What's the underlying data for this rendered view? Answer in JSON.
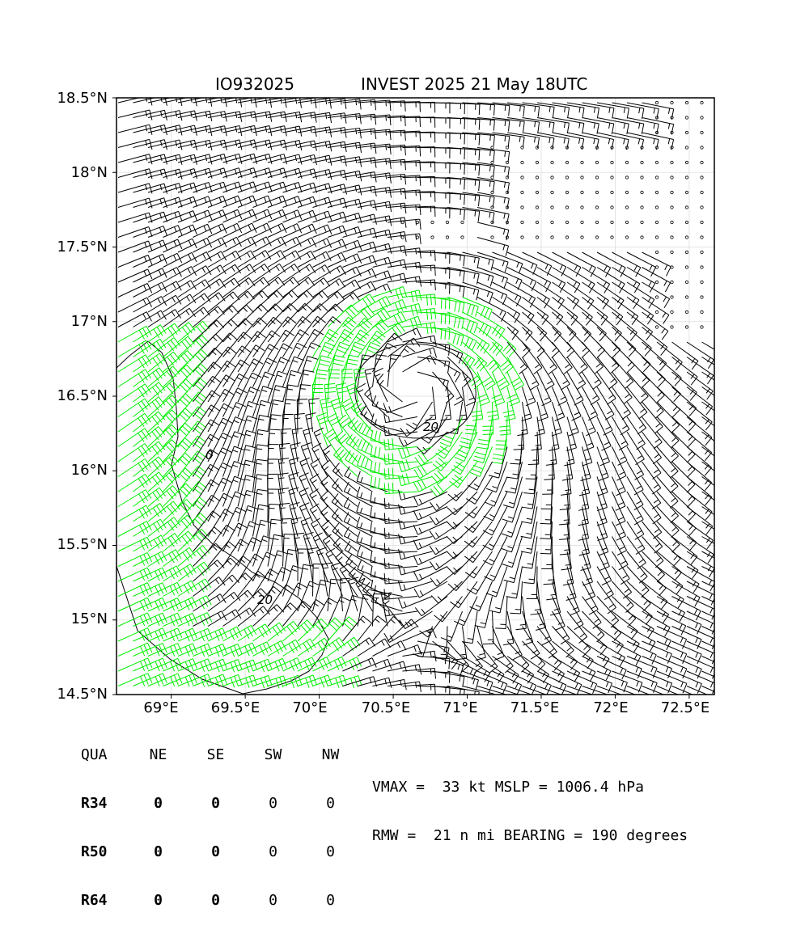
{
  "header": {
    "storm_id": "IO932025",
    "storm_title": "INVEST 2025 21 May 18UTC"
  },
  "map": {
    "lon_range": [
      68.63,
      72.67
    ],
    "lat_range": [
      14.5,
      18.5
    ],
    "lon_ticks": [
      "69°E",
      "69.5°E",
      "70°E",
      "70.5°E",
      "71°E",
      "71.5°E",
      "72°E",
      "72.5°E"
    ],
    "lat_ticks": [
      "18.5°N",
      "18°N",
      "17.5°N",
      "17°N",
      "16.5°N",
      "16°N",
      "15.5°N",
      "15°N",
      "14.5°N"
    ],
    "contour_labels": [
      "20",
      "20",
      "0"
    ],
    "colors": {
      "barb_normal": "#000000",
      "barb_34kt": "#00ee00",
      "coast": "#000000",
      "grid": "#dddddd"
    }
  },
  "quadrant_table": {
    "header": [
      "QUA",
      "NE",
      "SE",
      "SW",
      "NW"
    ],
    "rows": [
      {
        "label": "R34",
        "values": [
          "0",
          "0",
          "0",
          "0"
        ]
      },
      {
        "label": "R50",
        "values": [
          "0",
          "0",
          "0",
          "0"
        ]
      },
      {
        "label": "R64",
        "values": [
          "0",
          "0",
          "0",
          "0"
        ]
      }
    ]
  },
  "stats": {
    "line1": "VMAX =  33 kt MSLP = 1006.4 hPa",
    "line2": "RMW =  21 n mi BEARING = 190 degrees"
  }
}
